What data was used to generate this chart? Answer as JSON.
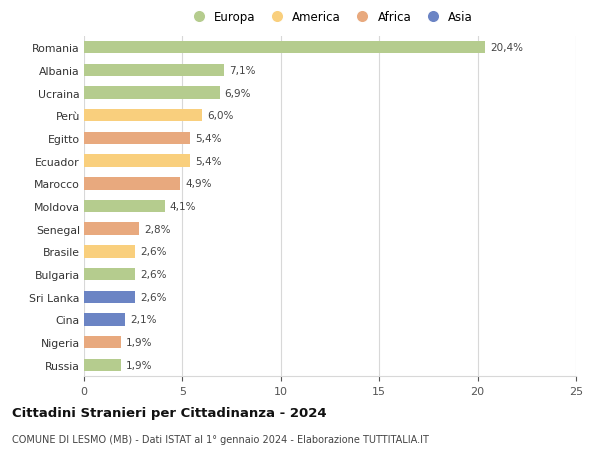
{
  "countries": [
    "Romania",
    "Albania",
    "Ucraina",
    "Perù",
    "Egitto",
    "Ecuador",
    "Marocco",
    "Moldova",
    "Senegal",
    "Brasile",
    "Bulgaria",
    "Sri Lanka",
    "Cina",
    "Nigeria",
    "Russia"
  ],
  "values": [
    20.4,
    7.1,
    6.9,
    6.0,
    5.4,
    5.4,
    4.9,
    4.1,
    2.8,
    2.6,
    2.6,
    2.6,
    2.1,
    1.9,
    1.9
  ],
  "labels": [
    "20,4%",
    "7,1%",
    "6,9%",
    "6,0%",
    "5,4%",
    "5,4%",
    "4,9%",
    "4,1%",
    "2,8%",
    "2,6%",
    "2,6%",
    "2,6%",
    "2,1%",
    "1,9%",
    "1,9%"
  ],
  "continents": [
    "Europa",
    "Europa",
    "Europa",
    "America",
    "Africa",
    "America",
    "Africa",
    "Europa",
    "Africa",
    "America",
    "Europa",
    "Asia",
    "Asia",
    "Africa",
    "Europa"
  ],
  "colors": {
    "Europa": "#b5cc8e",
    "America": "#f9cf7d",
    "Africa": "#e8a97e",
    "Asia": "#6b84c4"
  },
  "legend_order": [
    "Europa",
    "America",
    "Africa",
    "Asia"
  ],
  "xlim": [
    0,
    25
  ],
  "xticks": [
    0,
    5,
    10,
    15,
    20,
    25
  ],
  "title1": "Cittadini Stranieri per Cittadinanza - 2024",
  "title2": "COMUNE DI LESMO (MB) - Dati ISTAT al 1° gennaio 2024 - Elaborazione TUTTITALIA.IT",
  "bg_color": "#ffffff",
  "grid_color": "#d8d8d8"
}
